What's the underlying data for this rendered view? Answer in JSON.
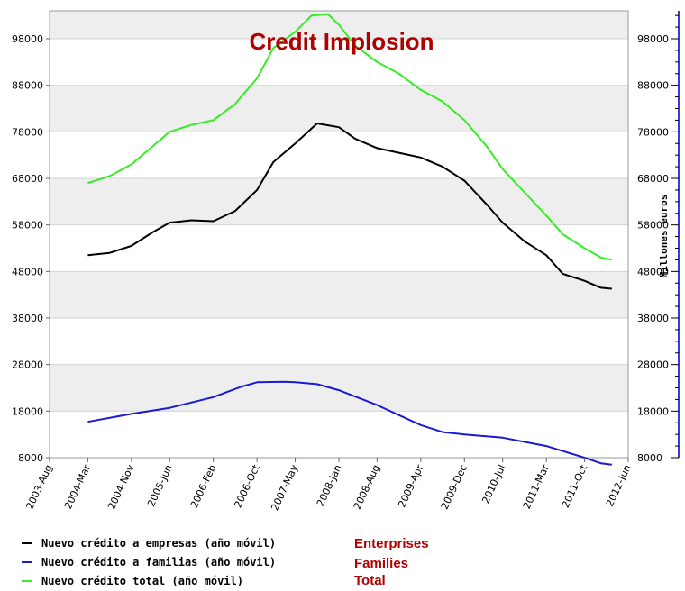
{
  "colors": {
    "enterprises": "#000000",
    "families": "#1a1ad2",
    "total": "#33ee22",
    "title": "#b00000",
    "band": "#eeeeee",
    "right_axis": "#3b3bd9"
  },
  "chart_data": {
    "type": "line",
    "title": "Credit Implosion",
    "ylabel_right": "Millones euros",
    "ylim": [
      8000,
      104000
    ],
    "y_ticks": [
      "8000",
      "18000",
      "28000",
      "38000",
      "48000",
      "58000",
      "68000",
      "78000",
      "88000",
      "98000"
    ],
    "x_ticks": [
      "2003-Aug",
      "2004-Mar",
      "2004-Nov",
      "2005-Jun",
      "2006-Feb",
      "2006-Oct",
      "2007-May",
      "2008-Jan",
      "2008-Aug",
      "2009-Apr",
      "2009-Dec",
      "2010-Jul",
      "2011-Mar",
      "2011-Oct",
      "2012-Jun"
    ],
    "series": [
      {
        "name": "Nuevo crédito a empresas (año móvil)",
        "color_key": "enterprises",
        "points": [
          [
            "2004-Mar",
            51500
          ],
          [
            "2004-Jul",
            52000
          ],
          [
            "2004-Nov",
            53500
          ],
          [
            "2005-Mar",
            56500
          ],
          [
            "2005-Jun",
            58500
          ],
          [
            "2005-Oct",
            59000
          ],
          [
            "2006-Feb",
            58800
          ],
          [
            "2006-Jun",
            61000
          ],
          [
            "2006-Oct",
            65500
          ],
          [
            "2007-Jan",
            71500
          ],
          [
            "2007-May",
            75500
          ],
          [
            "2007-Sep",
            79800
          ],
          [
            "2008-Jan",
            79000
          ],
          [
            "2008-Apr",
            76500
          ],
          [
            "2008-Aug",
            74500
          ],
          [
            "2008-Dec",
            73500
          ],
          [
            "2009-Apr",
            72500
          ],
          [
            "2009-Aug",
            70500
          ],
          [
            "2009-Dec",
            67500
          ],
          [
            "2010-Apr",
            62500
          ],
          [
            "2010-Jul",
            58500
          ],
          [
            "2010-Nov",
            54500
          ],
          [
            "2011-Mar",
            51500
          ],
          [
            "2011-Jun",
            47500
          ],
          [
            "2011-Oct",
            46000
          ],
          [
            "2012-Jan",
            44500
          ],
          [
            "2012-Mar",
            44300
          ]
        ]
      },
      {
        "name": "Nuevo crédito a familias (año móvil)",
        "color_key": "families",
        "points": [
          [
            "2004-Mar",
            15700
          ],
          [
            "2004-Nov",
            17400
          ],
          [
            "2005-Jun",
            18700
          ],
          [
            "2006-Feb",
            21000
          ],
          [
            "2006-Jul",
            23200
          ],
          [
            "2006-Oct",
            24200
          ],
          [
            "2007-Mar",
            24300
          ],
          [
            "2007-May",
            24200
          ],
          [
            "2007-Sep",
            23800
          ],
          [
            "2008-Jan",
            22500
          ],
          [
            "2008-Aug",
            19300
          ],
          [
            "2009-Apr",
            15000
          ],
          [
            "2009-Aug",
            13500
          ],
          [
            "2009-Dec",
            13000
          ],
          [
            "2010-Jul",
            12300
          ],
          [
            "2011-Mar",
            10500
          ],
          [
            "2011-Oct",
            8000
          ],
          [
            "2012-Jan",
            6800
          ],
          [
            "2012-Mar",
            6500
          ]
        ]
      },
      {
        "name": "Nuevo crédito total (año móvil)",
        "color_key": "total",
        "points": [
          [
            "2004-Mar",
            67000
          ],
          [
            "2004-Jul",
            68500
          ],
          [
            "2004-Nov",
            71000
          ],
          [
            "2005-Mar",
            75000
          ],
          [
            "2005-Jun",
            78000
          ],
          [
            "2005-Oct",
            79500
          ],
          [
            "2006-Feb",
            80500
          ],
          [
            "2006-Jun",
            84000
          ],
          [
            "2006-Oct",
            89500
          ],
          [
            "2007-Jan",
            96000
          ],
          [
            "2007-May",
            99500
          ],
          [
            "2007-Aug",
            103000
          ],
          [
            "2007-Nov",
            103300
          ],
          [
            "2008-Jan",
            101000
          ],
          [
            "2008-Apr",
            96500
          ],
          [
            "2008-Aug",
            93000
          ],
          [
            "2008-Dec",
            90500
          ],
          [
            "2009-Apr",
            87000
          ],
          [
            "2009-Aug",
            84500
          ],
          [
            "2009-Dec",
            80500
          ],
          [
            "2010-Apr",
            75000
          ],
          [
            "2010-Jul",
            70000
          ],
          [
            "2010-Nov",
            65000
          ],
          [
            "2011-Mar",
            60000
          ],
          [
            "2011-Jun",
            56000
          ],
          [
            "2011-Oct",
            53000
          ],
          [
            "2012-Jan",
            51000
          ],
          [
            "2012-Mar",
            50500
          ]
        ]
      }
    ],
    "legend_position": "bottom-left"
  },
  "annotations": [
    "Enterprises",
    "Families",
    "Total"
  ]
}
